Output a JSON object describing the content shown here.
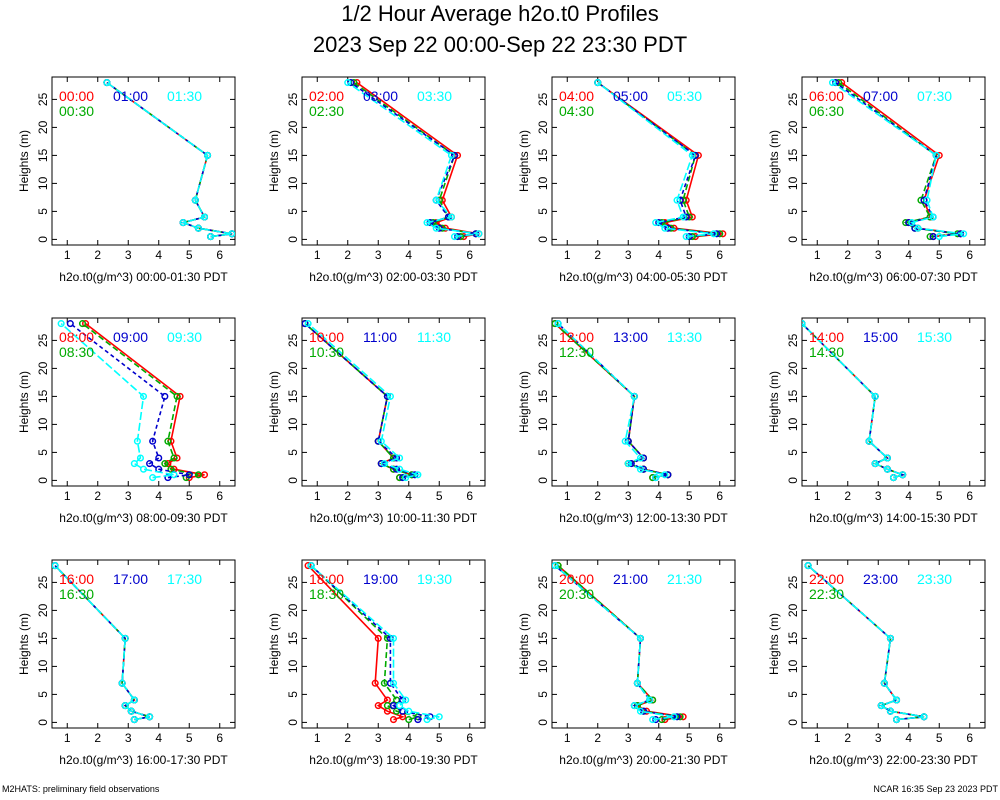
{
  "title": "1/2 Hour Average h2o.t0 Profiles",
  "subtitle": "2023 Sep 22 00:00-Sep 22 23:30 PDT",
  "footer_left": "M2HATS: preliminary field observations",
  "footer_right": "NCAR 16:35 Sep 23 2023 PDT",
  "colors": {
    "c0": "#ff0000",
    "c1": "#00aa00",
    "c2": "#0000cc",
    "c3": "#00ffff"
  },
  "chart_data": [
    {
      "type": "line",
      "title": "",
      "xlabel": "h2o.t0(g/m^3) 00:00-01:30 PDT",
      "ylabel": "Heights (m)",
      "xlim": [
        0.5,
        6.5
      ],
      "ylim": [
        -1,
        29
      ],
      "xticks": [
        1,
        2,
        3,
        4,
        5,
        6
      ],
      "yticks": [
        0,
        5,
        10,
        15,
        20,
        25
      ],
      "heights": [
        0.5,
        1,
        2,
        3,
        4,
        7,
        15,
        28
      ],
      "series": [
        {
          "name": "00:00",
          "values": [
            5.7,
            6.4,
            5.3,
            4.8,
            5.5,
            5.2,
            5.6,
            2.3
          ]
        },
        {
          "name": "00:30",
          "values": [
            5.7,
            6.4,
            5.3,
            4.8,
            5.5,
            5.2,
            5.6,
            2.3
          ]
        },
        {
          "name": "01:00",
          "values": [
            5.7,
            6.4,
            5.3,
            4.8,
            5.5,
            5.2,
            5.6,
            2.3
          ]
        },
        {
          "name": "01:30",
          "values": [
            5.7,
            6.4,
            5.3,
            4.8,
            5.5,
            5.2,
            5.6,
            2.3
          ]
        }
      ]
    },
    {
      "type": "line",
      "title": "",
      "xlabel": "h2o.t0(g/m^3) 02:00-03:30 PDT",
      "ylabel": "Heights (m)",
      "xlim": [
        0.5,
        6.5
      ],
      "ylim": [
        -1,
        29
      ],
      "xticks": [
        1,
        2,
        3,
        4,
        5,
        6
      ],
      "yticks": [
        0,
        5,
        10,
        15,
        20,
        25
      ],
      "heights": [
        0.5,
        1,
        2,
        3,
        4,
        7,
        15,
        28
      ],
      "series": [
        {
          "name": "02:00",
          "values": [
            5.8,
            6.3,
            5.2,
            4.9,
            5.4,
            5.1,
            5.6,
            2.3
          ]
        },
        {
          "name": "02:30",
          "values": [
            5.7,
            6.2,
            5.1,
            4.8,
            5.3,
            5.0,
            5.5,
            2.2
          ]
        },
        {
          "name": "03:00",
          "values": [
            5.6,
            6.2,
            5.0,
            4.7,
            5.3,
            4.9,
            5.5,
            2.1
          ]
        },
        {
          "name": "03:30",
          "values": [
            5.5,
            6.3,
            4.9,
            4.6,
            5.4,
            4.9,
            5.4,
            2.0
          ]
        }
      ]
    },
    {
      "type": "line",
      "title": "",
      "xlabel": "h2o.t0(g/m^3) 04:00-05:30 PDT",
      "ylabel": "Heights (m)",
      "xlim": [
        0.5,
        6.5
      ],
      "ylim": [
        -1,
        29
      ],
      "xticks": [
        1,
        2,
        3,
        4,
        5,
        6
      ],
      "yticks": [
        0,
        5,
        10,
        15,
        20,
        25
      ],
      "heights": [
        0.5,
        1,
        2,
        3,
        4,
        7,
        15,
        28
      ],
      "series": [
        {
          "name": "04:00",
          "values": [
            5.2,
            6.1,
            4.5,
            4.2,
            5.1,
            4.9,
            5.3,
            2.0
          ]
        },
        {
          "name": "04:30",
          "values": [
            5.1,
            6.0,
            4.4,
            4.1,
            5.0,
            4.8,
            5.2,
            2.0
          ]
        },
        {
          "name": "05:00",
          "values": [
            5.0,
            5.9,
            4.3,
            4.0,
            4.9,
            4.7,
            5.2,
            2.0
          ]
        },
        {
          "name": "05:30",
          "values": [
            4.9,
            5.8,
            4.2,
            3.9,
            4.8,
            4.6,
            5.1,
            2.0
          ]
        }
      ]
    },
    {
      "type": "line",
      "title": "",
      "xlabel": "h2o.t0(g/m^3) 06:00-07:30 PDT",
      "ylabel": "Heights (m)",
      "xlim": [
        0.5,
        6.5
      ],
      "ylim": [
        -1,
        29
      ],
      "xticks": [
        1,
        2,
        3,
        4,
        5,
        6
      ],
      "yticks": [
        0,
        5,
        10,
        15,
        20,
        25
      ],
      "heights": [
        0.5,
        1,
        2,
        3,
        4,
        7,
        15,
        28
      ],
      "series": [
        {
          "name": "06:00",
          "values": [
            4.8,
            5.7,
            4.3,
            4.0,
            4.7,
            4.5,
            5.0,
            1.8
          ]
        },
        {
          "name": "06:30",
          "values": [
            4.7,
            5.6,
            4.2,
            3.9,
            4.7,
            4.4,
            4.9,
            1.7
          ]
        },
        {
          "name": "07:00",
          "values": [
            4.8,
            5.7,
            4.2,
            4.0,
            4.8,
            4.5,
            4.9,
            1.6
          ]
        },
        {
          "name": "07:30",
          "values": [
            5.0,
            5.8,
            4.3,
            4.1,
            4.8,
            4.6,
            4.9,
            1.5
          ]
        }
      ]
    },
    {
      "type": "line",
      "title": "",
      "xlabel": "h2o.t0(g/m^3) 08:00-09:30 PDT",
      "ylabel": "Heights (m)",
      "xlim": [
        0.5,
        6.5
      ],
      "ylim": [
        -1,
        29
      ],
      "xticks": [
        1,
        2,
        3,
        4,
        5,
        6
      ],
      "yticks": [
        0,
        5,
        10,
        15,
        20,
        25
      ],
      "heights": [
        0.5,
        1,
        2,
        3,
        4,
        7,
        15,
        28
      ],
      "series": [
        {
          "name": "08:00",
          "values": [
            5.0,
            5.5,
            4.5,
            4.3,
            4.6,
            4.4,
            4.7,
            1.6
          ]
        },
        {
          "name": "08:30",
          "values": [
            4.9,
            5.3,
            4.4,
            4.2,
            4.5,
            4.3,
            4.6,
            1.5
          ]
        },
        {
          "name": "09:00",
          "values": [
            4.3,
            5.0,
            4.0,
            3.7,
            4.0,
            3.8,
            4.2,
            1.1
          ]
        },
        {
          "name": "09:30",
          "values": [
            3.8,
            4.5,
            3.5,
            3.2,
            3.4,
            3.3,
            3.5,
            0.8
          ]
        }
      ]
    },
    {
      "type": "line",
      "title": "",
      "xlabel": "h2o.t0(g/m^3) 10:00-11:30 PDT",
      "ylabel": "Heights (m)",
      "xlim": [
        0.5,
        6.5
      ],
      "ylim": [
        -1,
        29
      ],
      "xticks": [
        1,
        2,
        3,
        4,
        5,
        6
      ],
      "yticks": [
        0,
        5,
        10,
        15,
        20,
        25
      ],
      "heights": [
        0.5,
        1,
        2,
        3,
        4,
        7,
        15,
        28
      ],
      "series": [
        {
          "name": "10:00",
          "values": [
            3.7,
            4.1,
            3.5,
            3.1,
            3.5,
            3.0,
            3.3,
            0.6
          ]
        },
        {
          "name": "10:30",
          "values": [
            3.7,
            4.1,
            3.5,
            3.1,
            3.5,
            3.0,
            3.3,
            0.6
          ]
        },
        {
          "name": "11:00",
          "values": [
            3.8,
            4.2,
            3.6,
            3.1,
            3.6,
            3.0,
            3.3,
            0.6
          ]
        },
        {
          "name": "11:30",
          "values": [
            3.9,
            4.3,
            3.7,
            3.2,
            3.7,
            3.1,
            3.4,
            0.7
          ]
        }
      ]
    },
    {
      "type": "line",
      "title": "",
      "xlabel": "h2o.t0(g/m^3) 12:00-13:30 PDT",
      "ylabel": "Heights (m)",
      "xlim": [
        0.5,
        6.5
      ],
      "ylim": [
        -1,
        29
      ],
      "xticks": [
        1,
        2,
        3,
        4,
        5,
        6
      ],
      "yticks": [
        0,
        5,
        10,
        15,
        20,
        25
      ],
      "heights": [
        0.5,
        1,
        2,
        3,
        4,
        7,
        15,
        28
      ],
      "series": [
        {
          "name": "12:00",
          "values": [
            3.8,
            4.3,
            3.5,
            3.0,
            3.5,
            3.0,
            3.2,
            0.6
          ]
        },
        {
          "name": "12:30",
          "values": [
            3.8,
            4.3,
            3.5,
            3.0,
            3.5,
            3.0,
            3.2,
            0.6
          ]
        },
        {
          "name": "13:00",
          "values": [
            3.9,
            4.3,
            3.5,
            3.1,
            3.5,
            3.0,
            3.2,
            0.7
          ]
        },
        {
          "name": "13:30",
          "values": [
            3.9,
            4.2,
            3.4,
            3.0,
            3.4,
            2.9,
            3.2,
            0.7
          ]
        }
      ]
    },
    {
      "type": "line",
      "title": "",
      "xlabel": "h2o.t0(g/m^3) 14:00-15:30 PDT",
      "ylabel": "Heights (m)",
      "xlim": [
        0.5,
        6.5
      ],
      "ylim": [
        -1,
        29
      ],
      "xticks": [
        1,
        2,
        3,
        4,
        5,
        6
      ],
      "yticks": [
        0,
        5,
        10,
        15,
        20,
        25
      ],
      "heights": [
        0.5,
        1,
        2,
        3,
        4,
        7,
        15,
        28
      ],
      "series": [
        {
          "name": "14:00",
          "values": [
            3.5,
            3.8,
            3.3,
            2.9,
            3.3,
            2.7,
            2.9,
            0.5
          ]
        },
        {
          "name": "14:30",
          "values": [
            3.5,
            3.8,
            3.3,
            2.9,
            3.3,
            2.7,
            2.9,
            0.5
          ]
        },
        {
          "name": "15:00",
          "values": [
            3.5,
            3.8,
            3.3,
            2.9,
            3.3,
            2.7,
            2.9,
            0.5
          ]
        },
        {
          "name": "15:30",
          "values": [
            3.5,
            3.8,
            3.3,
            2.9,
            3.3,
            2.7,
            2.9,
            0.5
          ]
        }
      ]
    },
    {
      "type": "line",
      "title": "",
      "xlabel": "h2o.t0(g/m^3) 16:00-17:30 PDT",
      "ylabel": "Heights (m)",
      "xlim": [
        0.5,
        6.5
      ],
      "ylim": [
        -1,
        29
      ],
      "xticks": [
        1,
        2,
        3,
        4,
        5,
        6
      ],
      "yticks": [
        0,
        5,
        10,
        15,
        20,
        25
      ],
      "heights": [
        0.5,
        1,
        2,
        3,
        4,
        7,
        15,
        28
      ],
      "series": [
        {
          "name": "16:00",
          "values": [
            3.2,
            3.7,
            3.1,
            2.9,
            3.2,
            2.8,
            2.9,
            0.6
          ]
        },
        {
          "name": "16:30",
          "values": [
            3.2,
            3.7,
            3.1,
            2.9,
            3.2,
            2.8,
            2.9,
            0.6
          ]
        },
        {
          "name": "17:00",
          "values": [
            3.2,
            3.7,
            3.1,
            2.9,
            3.2,
            2.8,
            2.9,
            0.6
          ]
        },
        {
          "name": "17:30",
          "values": [
            3.2,
            3.7,
            3.1,
            2.9,
            3.2,
            2.8,
            2.9,
            0.6
          ]
        }
      ]
    },
    {
      "type": "line",
      "title": "",
      "xlabel": "h2o.t0(g/m^3) 18:00-19:30 PDT",
      "ylabel": "Heights (m)",
      "xlim": [
        0.5,
        6.5
      ],
      "ylim": [
        -1,
        29
      ],
      "xticks": [
        1,
        2,
        3,
        4,
        5,
        6
      ],
      "yticks": [
        0,
        5,
        10,
        15,
        20,
        25
      ],
      "heights": [
        0.5,
        1,
        2,
        3,
        4,
        7,
        15,
        28
      ],
      "series": [
        {
          "name": "18:00",
          "values": [
            3.5,
            3.8,
            3.3,
            3.0,
            3.3,
            2.9,
            3.0,
            0.7
          ]
        },
        {
          "name": "18:30",
          "values": [
            4.0,
            4.3,
            3.6,
            3.3,
            3.6,
            3.2,
            3.3,
            0.8
          ]
        },
        {
          "name": "19:00",
          "values": [
            4.3,
            4.7,
            3.8,
            3.5,
            3.8,
            3.4,
            3.4,
            0.8
          ]
        },
        {
          "name": "19:30",
          "values": [
            4.6,
            5.0,
            4.0,
            3.7,
            3.9,
            3.5,
            3.5,
            0.8
          ]
        }
      ]
    },
    {
      "type": "line",
      "title": "",
      "xlabel": "h2o.t0(g/m^3) 20:00-21:30 PDT",
      "ylabel": "Heights (m)",
      "xlim": [
        0.5,
        6.5
      ],
      "ylim": [
        -1,
        29
      ],
      "xticks": [
        1,
        2,
        3,
        4,
        5,
        6
      ],
      "yticks": [
        0,
        5,
        10,
        15,
        20,
        25
      ],
      "heights": [
        0.5,
        1,
        2,
        3,
        4,
        7,
        15,
        28
      ],
      "series": [
        {
          "name": "20:00",
          "values": [
            4.2,
            4.8,
            3.6,
            3.3,
            3.8,
            3.3,
            3.4,
            0.7
          ]
        },
        {
          "name": "20:30",
          "values": [
            4.1,
            4.7,
            3.5,
            3.3,
            3.8,
            3.3,
            3.4,
            0.7
          ]
        },
        {
          "name": "21:00",
          "values": [
            3.9,
            4.6,
            3.5,
            3.2,
            3.7,
            3.3,
            3.4,
            0.6
          ]
        },
        {
          "name": "21:30",
          "values": [
            3.8,
            4.5,
            3.4,
            3.2,
            3.7,
            3.3,
            3.4,
            0.6
          ]
        }
      ]
    },
    {
      "type": "line",
      "title": "",
      "xlabel": "h2o.t0(g/m^3) 22:00-23:30 PDT",
      "ylabel": "Heights (m)",
      "xlim": [
        0.5,
        6.5
      ],
      "ylim": [
        -1,
        29
      ],
      "xticks": [
        1,
        2,
        3,
        4,
        5,
        6
      ],
      "yticks": [
        0,
        5,
        10,
        15,
        20,
        25
      ],
      "heights": [
        0.5,
        1,
        2,
        3,
        4,
        7,
        15,
        28
      ],
      "series": [
        {
          "name": "22:00",
          "values": [
            3.6,
            4.5,
            3.4,
            3.1,
            3.6,
            3.2,
            3.4,
            0.7
          ]
        },
        {
          "name": "22:30",
          "values": [
            3.6,
            4.5,
            3.4,
            3.1,
            3.6,
            3.2,
            3.4,
            0.7
          ]
        },
        {
          "name": "23:00",
          "values": [
            3.6,
            4.5,
            3.4,
            3.1,
            3.6,
            3.2,
            3.4,
            0.7
          ]
        },
        {
          "name": "23:30",
          "values": [
            3.6,
            4.5,
            3.4,
            3.1,
            3.6,
            3.2,
            3.4,
            0.7
          ]
        }
      ]
    }
  ]
}
